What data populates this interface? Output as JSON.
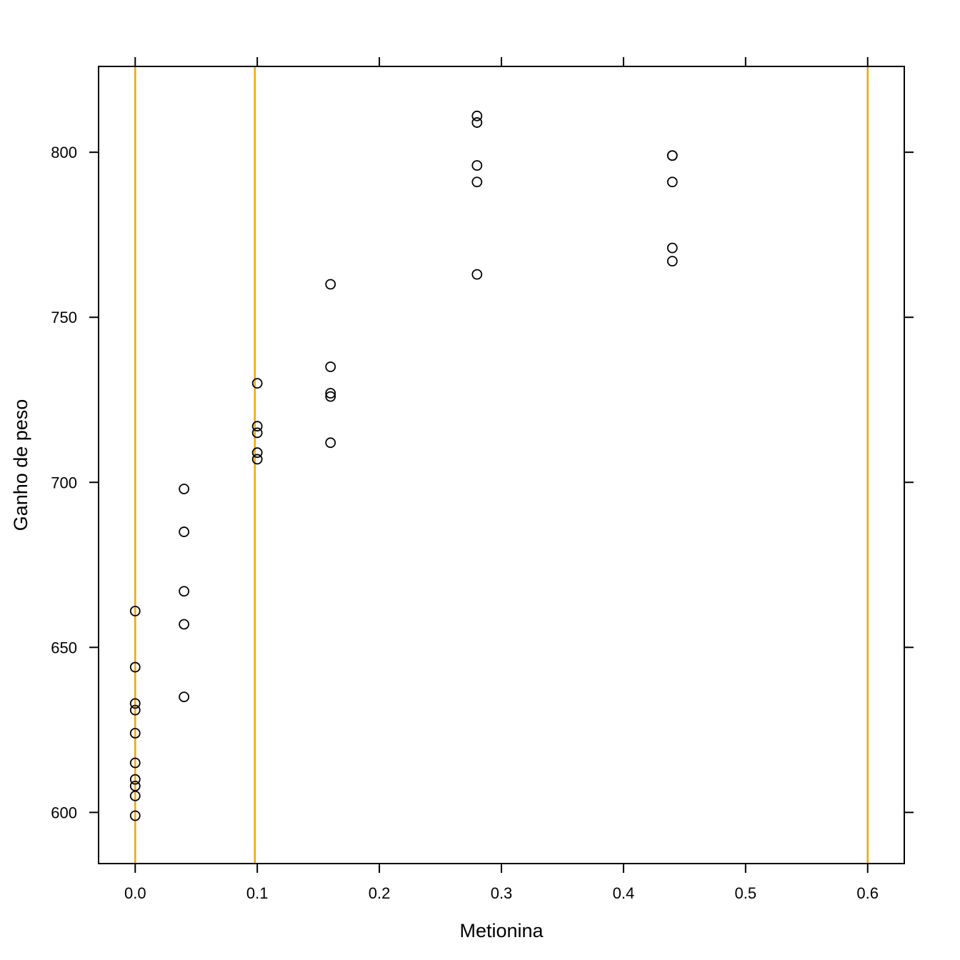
{
  "chart_data": {
    "type": "scatter",
    "xlabel": "Metionina",
    "ylabel": "Ganho de peso",
    "xlim": [
      -0.03,
      0.63
    ],
    "ylim": [
      584.5,
      826
    ],
    "x_ticks": [
      0.0,
      0.1,
      0.2,
      0.3,
      0.4,
      0.5,
      0.6
    ],
    "x_tick_labels": [
      "0.0",
      "0.1",
      "0.2",
      "0.3",
      "0.4",
      "0.5",
      "0.6"
    ],
    "y_ticks": [
      600,
      650,
      700,
      750,
      800
    ],
    "y_tick_labels": [
      "600",
      "650",
      "700",
      "750",
      "800"
    ],
    "vertical_lines": [
      0.0,
      0.098,
      0.6
    ],
    "colors": {
      "points": "#000000",
      "reference_lines": "#F5A300",
      "axes": "#000000"
    },
    "series": [
      {
        "points": [
          {
            "x": 0.0,
            "y": 661
          },
          {
            "x": 0.0,
            "y": 644
          },
          {
            "x": 0.0,
            "y": 633
          },
          {
            "x": 0.0,
            "y": 631
          },
          {
            "x": 0.0,
            "y": 624
          },
          {
            "x": 0.0,
            "y": 615
          },
          {
            "x": 0.0,
            "y": 610
          },
          {
            "x": 0.0,
            "y": 608
          },
          {
            "x": 0.0,
            "y": 605
          },
          {
            "x": 0.0,
            "y": 599
          },
          {
            "x": 0.04,
            "y": 698
          },
          {
            "x": 0.04,
            "y": 685
          },
          {
            "x": 0.04,
            "y": 667
          },
          {
            "x": 0.04,
            "y": 657
          },
          {
            "x": 0.04,
            "y": 635
          },
          {
            "x": 0.1,
            "y": 730
          },
          {
            "x": 0.1,
            "y": 717
          },
          {
            "x": 0.1,
            "y": 715
          },
          {
            "x": 0.1,
            "y": 709
          },
          {
            "x": 0.1,
            "y": 707
          },
          {
            "x": 0.16,
            "y": 760
          },
          {
            "x": 0.16,
            "y": 735
          },
          {
            "x": 0.16,
            "y": 727
          },
          {
            "x": 0.16,
            "y": 726
          },
          {
            "x": 0.16,
            "y": 712
          },
          {
            "x": 0.28,
            "y": 811
          },
          {
            "x": 0.28,
            "y": 809
          },
          {
            "x": 0.28,
            "y": 796
          },
          {
            "x": 0.28,
            "y": 791
          },
          {
            "x": 0.28,
            "y": 763
          },
          {
            "x": 0.44,
            "y": 799
          },
          {
            "x": 0.44,
            "y": 799
          },
          {
            "x": 0.44,
            "y": 791
          },
          {
            "x": 0.44,
            "y": 771
          },
          {
            "x": 0.44,
            "y": 767
          }
        ]
      }
    ]
  }
}
